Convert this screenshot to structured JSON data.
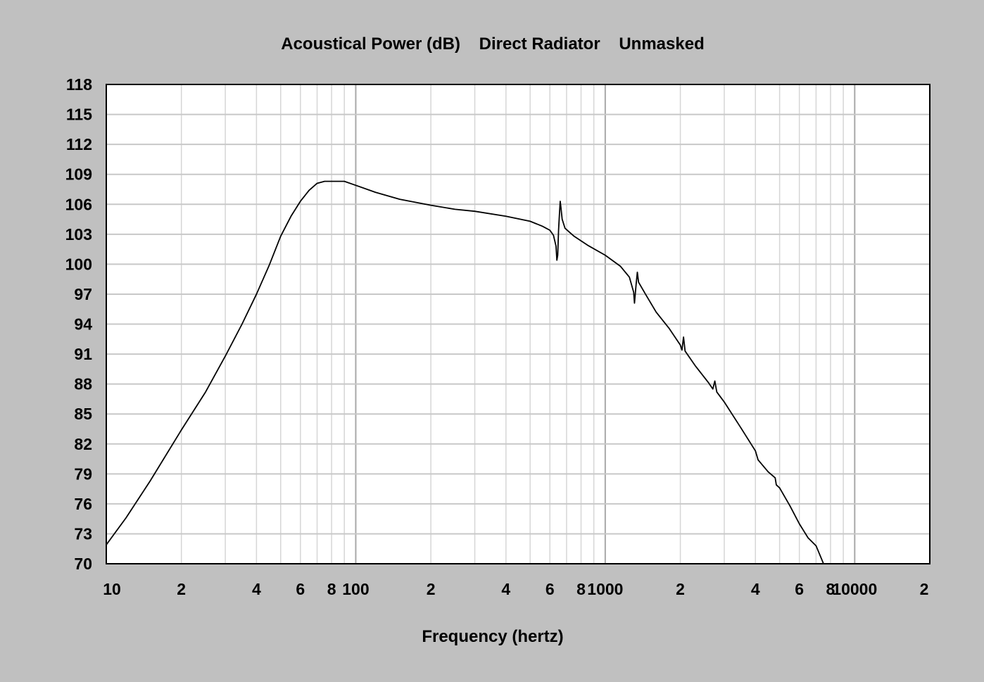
{
  "chart_data": {
    "type": "line",
    "title": "Acoustical Power (dB)    Direct Radiator    Unmasked",
    "xlabel": "Frequency (hertz)",
    "ylabel": "",
    "x_scale": "log",
    "xlim": [
      10,
      20000
    ],
    "ylim": [
      70,
      118
    ],
    "grid": true,
    "yticks": [
      70,
      73,
      76,
      79,
      82,
      85,
      88,
      91,
      94,
      97,
      100,
      103,
      106,
      109,
      112,
      115,
      118
    ],
    "xtick_labels": [
      {
        "value": 10,
        "label": "10"
      },
      {
        "value": 20,
        "label": "2"
      },
      {
        "value": 40,
        "label": "4"
      },
      {
        "value": 60,
        "label": "6"
      },
      {
        "value": 80,
        "label": "8"
      },
      {
        "value": 100,
        "label": "100"
      },
      {
        "value": 200,
        "label": "2"
      },
      {
        "value": 400,
        "label": "4"
      },
      {
        "value": 600,
        "label": "6"
      },
      {
        "value": 800,
        "label": "8"
      },
      {
        "value": 1000,
        "label": "1000"
      },
      {
        "value": 2000,
        "label": "2"
      },
      {
        "value": 4000,
        "label": "4"
      },
      {
        "value": 6000,
        "label": "6"
      },
      {
        "value": 8000,
        "label": "8"
      },
      {
        "value": 10000,
        "label": "10000"
      },
      {
        "value": 20000,
        "label": "2"
      }
    ],
    "series": [
      {
        "color": "#000000",
        "points": [
          [
            10,
            71.9
          ],
          [
            12,
            74.6
          ],
          [
            15,
            78.3
          ],
          [
            20,
            83.4
          ],
          [
            25,
            87.2
          ],
          [
            30,
            90.8
          ],
          [
            35,
            94.0
          ],
          [
            40,
            97.0
          ],
          [
            45,
            99.9
          ],
          [
            50,
            102.8
          ],
          [
            55,
            104.8
          ],
          [
            60,
            106.3
          ],
          [
            65,
            107.4
          ],
          [
            70,
            108.1
          ],
          [
            75,
            108.3
          ],
          [
            80,
            108.3
          ],
          [
            90,
            108.3
          ],
          [
            100,
            107.9
          ],
          [
            120,
            107.2
          ],
          [
            150,
            106.5
          ],
          [
            200,
            105.9
          ],
          [
            250,
            105.5
          ],
          [
            300,
            105.3
          ],
          [
            400,
            104.8
          ],
          [
            500,
            104.3
          ],
          [
            560,
            103.8
          ],
          [
            600,
            103.4
          ],
          [
            620,
            102.9
          ],
          [
            635,
            101.8
          ],
          [
            640,
            100.4
          ],
          [
            645,
            100.9
          ],
          [
            650,
            103.4
          ],
          [
            655,
            104.9
          ],
          [
            660,
            106.3
          ],
          [
            665,
            105.6
          ],
          [
            672,
            104.5
          ],
          [
            690,
            103.6
          ],
          [
            750,
            102.8
          ],
          [
            850,
            101.9
          ],
          [
            1000,
            100.9
          ],
          [
            1150,
            99.8
          ],
          [
            1250,
            98.7
          ],
          [
            1300,
            97.2
          ],
          [
            1310,
            96.1
          ],
          [
            1330,
            98.0
          ],
          [
            1345,
            99.2
          ],
          [
            1360,
            98.2
          ],
          [
            1450,
            97.0
          ],
          [
            1600,
            95.2
          ],
          [
            1800,
            93.6
          ],
          [
            2000,
            91.9
          ],
          [
            2030,
            91.4
          ],
          [
            2060,
            92.7
          ],
          [
            2090,
            91.3
          ],
          [
            2300,
            89.8
          ],
          [
            2600,
            88.1
          ],
          [
            2700,
            87.5
          ],
          [
            2750,
            88.3
          ],
          [
            2800,
            87.2
          ],
          [
            3000,
            86.2
          ],
          [
            3500,
            83.6
          ],
          [
            4000,
            81.3
          ],
          [
            4100,
            80.4
          ],
          [
            4500,
            79.2
          ],
          [
            4800,
            78.6
          ],
          [
            4850,
            77.9
          ],
          [
            5000,
            77.6
          ],
          [
            5500,
            75.8
          ],
          [
            6000,
            74.0
          ],
          [
            6500,
            72.6
          ],
          [
            7000,
            71.8
          ],
          [
            7500,
            70.0
          ]
        ]
      }
    ]
  }
}
